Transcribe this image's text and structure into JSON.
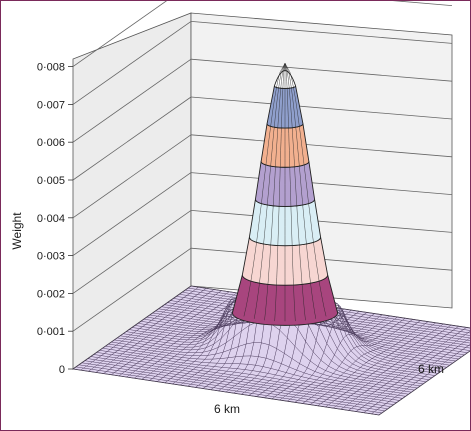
{
  "chart_data": {
    "type": "surface",
    "ylabel": "Weight",
    "xlabel": "6 km",
    "zlabel": "6 km",
    "zlim": [
      0,
      0.008
    ],
    "ticks": [
      {
        "value": 0,
        "label": "0"
      },
      {
        "value": 0.001,
        "label": "0·001"
      },
      {
        "value": 0.002,
        "label": "0·002"
      },
      {
        "value": 0.003,
        "label": "0·003"
      },
      {
        "value": 0.004,
        "label": "0·004"
      },
      {
        "value": 0.005,
        "label": "0·005"
      },
      {
        "value": 0.006,
        "label": "0·006"
      },
      {
        "value": 0.007,
        "label": "0·007"
      },
      {
        "value": 0.008,
        "label": "0·008"
      }
    ],
    "peak": 0.0076,
    "bands": [
      {
        "from": 0.001,
        "to": 0.002,
        "color": "#a8457e"
      },
      {
        "from": 0.002,
        "to": 0.003,
        "color": "#f7d6d2"
      },
      {
        "from": 0.003,
        "to": 0.004,
        "color": "#d9eef5"
      },
      {
        "from": 0.004,
        "to": 0.005,
        "color": "#b3a0cf"
      },
      {
        "from": 0.005,
        "to": 0.006,
        "color": "#f2b08f"
      },
      {
        "from": 0.006,
        "to": 0.007,
        "color": "#8f9fcc"
      }
    ],
    "base_color": "#ded2ee",
    "grid": true
  }
}
